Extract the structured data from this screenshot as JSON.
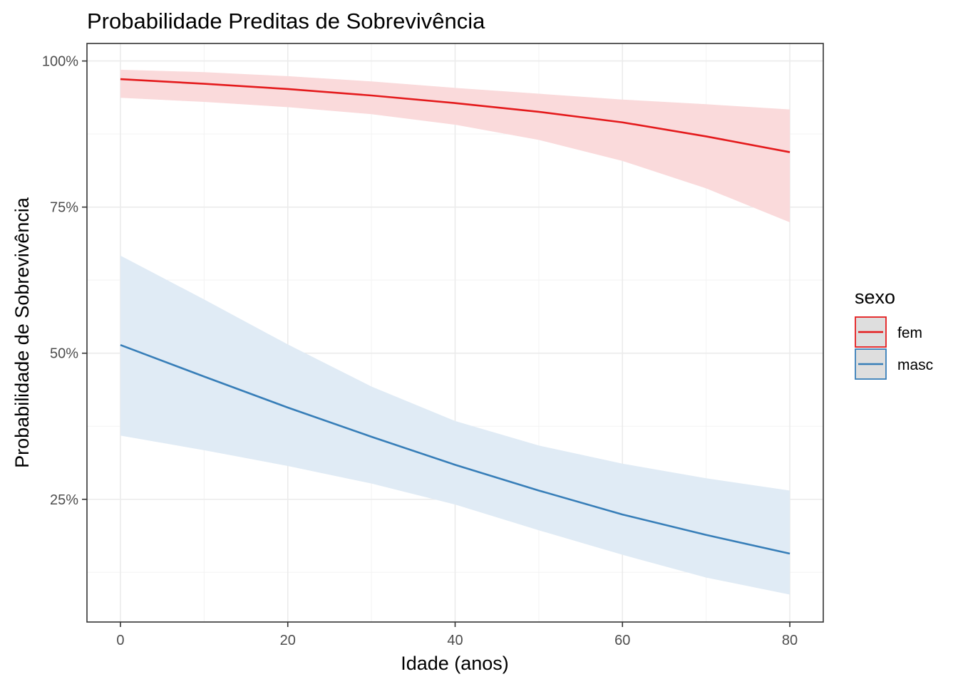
{
  "chart_data": {
    "type": "line",
    "title": "Probabilidade Preditas de Sobrevivência",
    "xlabel": "Idade (anos)",
    "ylabel": "Probabilidade de Sobrevivência",
    "xlim": [
      -4,
      84
    ],
    "ylim": [
      0.04,
      1.03
    ],
    "x_ticks": [
      0,
      20,
      40,
      60,
      80
    ],
    "x_tick_labels": [
      "0",
      "20",
      "40",
      "60",
      "80"
    ],
    "y_ticks": [
      0.25,
      0.5,
      0.75,
      1.0
    ],
    "y_tick_labels": [
      "25%",
      "50%",
      "75%",
      "100%"
    ],
    "grid": true,
    "legend": {
      "title": "sexo",
      "position": "right"
    },
    "x": [
      0,
      10,
      20,
      30,
      40,
      50,
      60,
      70,
      80
    ],
    "series": [
      {
        "name": "fem",
        "color": "#e41a1c",
        "fill": "#fadadb",
        "values": [
          0.969,
          0.961,
          0.952,
          0.941,
          0.928,
          0.913,
          0.895,
          0.871,
          0.844
        ],
        "lower": [
          0.937,
          0.93,
          0.921,
          0.909,
          0.891,
          0.865,
          0.829,
          0.782,
          0.724
        ],
        "upper": [
          0.985,
          0.981,
          0.974,
          0.965,
          0.954,
          0.944,
          0.934,
          0.926,
          0.917
        ]
      },
      {
        "name": "masc",
        "color": "#377eb8",
        "fill": "#e0ebf5",
        "values": [
          0.514,
          0.46,
          0.407,
          0.357,
          0.309,
          0.265,
          0.224,
          0.189,
          0.157
        ],
        "lower": [
          0.359,
          0.334,
          0.307,
          0.277,
          0.241,
          0.197,
          0.155,
          0.116,
          0.087
        ],
        "upper": [
          0.667,
          0.592,
          0.515,
          0.443,
          0.384,
          0.342,
          0.311,
          0.286,
          0.265
        ]
      }
    ]
  }
}
